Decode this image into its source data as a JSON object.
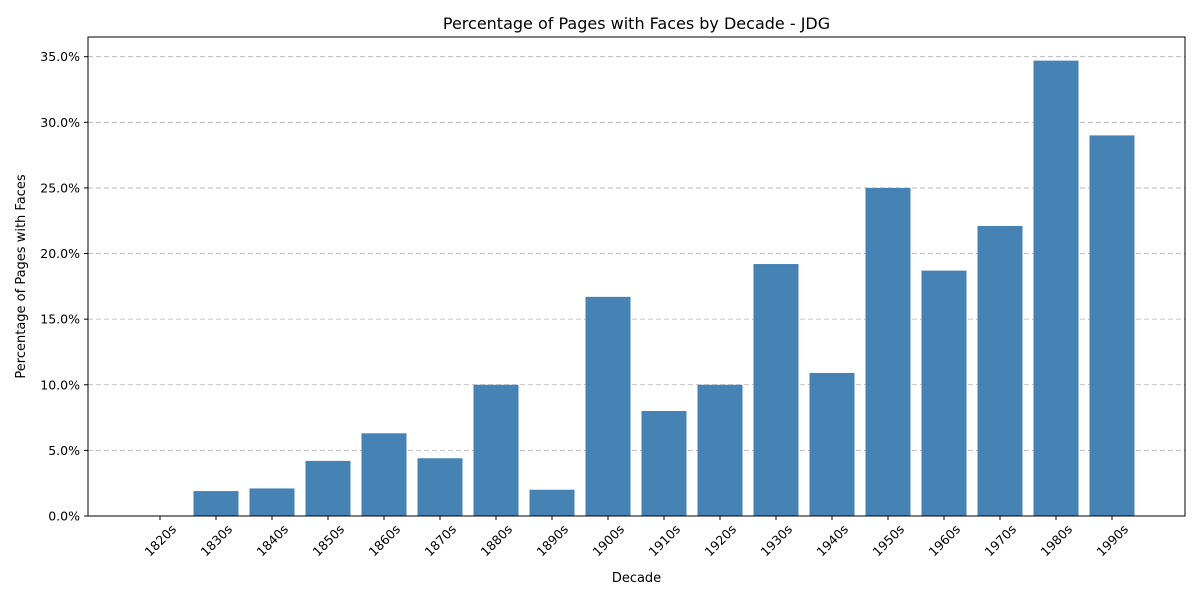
{
  "chart_data": {
    "type": "bar",
    "title": "Percentage of Pages with Faces by Decade - JDG",
    "xlabel": "Decade",
    "ylabel": "Percentage of Pages with Faces",
    "categories": [
      "1820s",
      "1830s",
      "1840s",
      "1850s",
      "1860s",
      "1870s",
      "1880s",
      "1890s",
      "1900s",
      "1910s",
      "1920s",
      "1930s",
      "1940s",
      "1950s",
      "1960s",
      "1970s",
      "1980s",
      "1990s"
    ],
    "values": [
      0.0,
      1.9,
      2.1,
      4.2,
      6.3,
      4.4,
      10.0,
      2.0,
      16.7,
      8.0,
      10.0,
      19.2,
      10.9,
      25.0,
      18.7,
      22.1,
      34.7,
      29.0
    ],
    "ylim": [
      0,
      36.5
    ],
    "yticks": [
      0,
      5,
      10,
      15,
      20,
      25,
      30,
      35
    ],
    "ytick_labels": [
      "0.0%",
      "5.0%",
      "10.0%",
      "15.0%",
      "20.0%",
      "25.0%",
      "30.0%",
      "35.0%"
    ],
    "grid": "y-dashed",
    "bar_color": "#4682b4",
    "xtick_rotation": 45
  }
}
